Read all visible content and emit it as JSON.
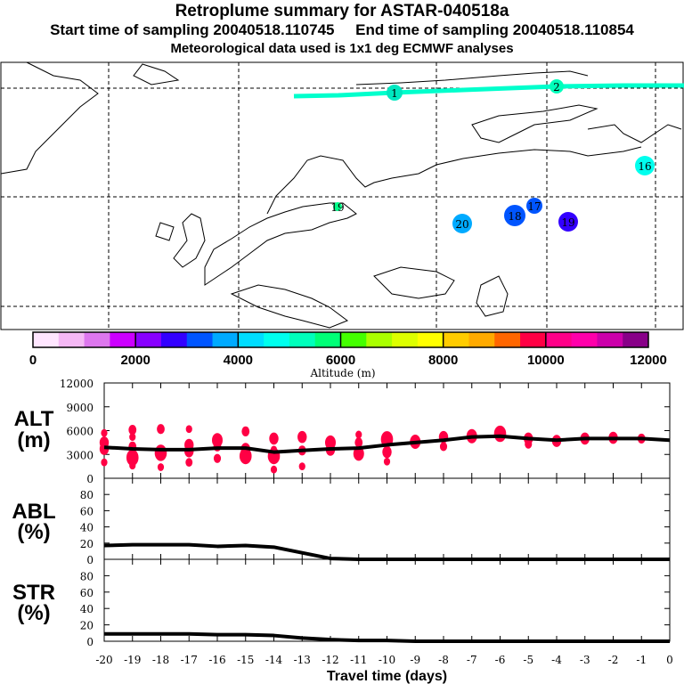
{
  "header": {
    "title": "Retroplume summary for ASTAR-040518a",
    "subtitle": "Start time of sampling 20040518.110745     End time of sampling 20040518.110854",
    "met_info": "Meteorological data used is 1x1 deg ECMWF analyses"
  },
  "map": {
    "plume_labels": [
      {
        "text": "1",
        "color": "#00e8c0"
      },
      {
        "text": "2",
        "color": "#00ffbb"
      },
      {
        "text": "16",
        "color": "#00ffee"
      },
      {
        "text": "17",
        "color": "#0055ff"
      },
      {
        "text": "18",
        "color": "#0055ff"
      },
      {
        "text": "19",
        "color": "#3300ff"
      },
      {
        "text": "20",
        "color": "#00aaff"
      },
      {
        "text": "19",
        "color": "#00ff88"
      }
    ]
  },
  "colorbar": {
    "label": "Altitude (m)",
    "ticks": [
      "0",
      "2000",
      "4000",
      "6000",
      "8000",
      "10000",
      "12000"
    ],
    "colors": [
      "#ffe6ff",
      "#f5b8f5",
      "#dd77ee",
      "#cc00ff",
      "#8800ff",
      "#3300ff",
      "#0055ff",
      "#00aaff",
      "#00ddff",
      "#00ffee",
      "#00ffbb",
      "#00ff77",
      "#44ff00",
      "#aaff00",
      "#ddff00",
      "#ffff00",
      "#ffcc00",
      "#ffaa00",
      "#ff6600",
      "#ff0044",
      "#ff0088",
      "#ff00aa",
      "#cc00aa",
      "#880088"
    ]
  },
  "chart_data": [
    {
      "type": "line",
      "panel": "ALT",
      "ylabel": "ALT\n(m)",
      "ylabel_lines": [
        "ALT",
        "(m)"
      ],
      "ylim": [
        0,
        12000
      ],
      "yticks": [
        "0",
        "3000",
        "6000",
        "9000",
        "12000"
      ],
      "x": [
        -20,
        -19,
        -18,
        -17,
        -16,
        -15,
        -14,
        -13,
        -12,
        -11,
        -10,
        -9,
        -8,
        -7,
        -6,
        -5,
        -4,
        -3,
        -2,
        -1,
        0
      ],
      "values": [
        3900,
        3700,
        3600,
        3600,
        3800,
        3800,
        3300,
        3500,
        3700,
        3800,
        4200,
        4500,
        4800,
        5200,
        5300,
        5000,
        4800,
        5000,
        5000,
        5000,
        4800
      ],
      "scatter_color": "#ff0044",
      "scatter": [
        [
          -20,
          5700,
          1
        ],
        [
          -20,
          4500,
          2
        ],
        [
          -20,
          3700,
          2
        ],
        [
          -20,
          2000,
          1
        ],
        [
          -19,
          6100,
          1.5
        ],
        [
          -19,
          5200,
          1
        ],
        [
          -19,
          4000,
          1.5
        ],
        [
          -19,
          2600,
          3
        ],
        [
          -19,
          1600,
          1
        ],
        [
          -18,
          6200,
          1.5
        ],
        [
          -18,
          3200,
          3
        ],
        [
          -18,
          1400,
          1
        ],
        [
          -17,
          6200,
          1
        ],
        [
          -17,
          4200,
          2
        ],
        [
          -17,
          3400,
          2
        ],
        [
          -17,
          2000,
          1.2
        ],
        [
          -16,
          4800,
          2.5
        ],
        [
          -16,
          4000,
          1.5
        ],
        [
          -16,
          2500,
          1.3
        ],
        [
          -15,
          5900,
          1.5
        ],
        [
          -15,
          3700,
          2
        ],
        [
          -15,
          2800,
          3
        ],
        [
          -14,
          5000,
          2
        ],
        [
          -14,
          2800,
          3
        ],
        [
          -14,
          3600,
          1
        ],
        [
          -14,
          1100,
          1
        ],
        [
          -13,
          5200,
          2
        ],
        [
          -13,
          3500,
          1.5
        ],
        [
          -13,
          1500,
          1
        ],
        [
          -12,
          4500,
          2.5
        ],
        [
          -12,
          3600,
          2
        ],
        [
          -11,
          5500,
          1
        ],
        [
          -11,
          4500,
          1.5
        ],
        [
          -11,
          3100,
          2.5
        ],
        [
          -10,
          4900,
          3
        ],
        [
          -10,
          3300,
          2
        ],
        [
          -10,
          2100,
          1
        ],
        [
          -9,
          4600,
          2.5
        ],
        [
          -8,
          5200,
          2
        ],
        [
          -8,
          4000,
          1.3
        ],
        [
          -7,
          5300,
          2.5
        ],
        [
          -6,
          5600,
          3
        ],
        [
          -5,
          5000,
          2
        ],
        [
          -5,
          4300,
          1.3
        ],
        [
          -4,
          4700,
          2
        ],
        [
          -3,
          5000,
          2
        ],
        [
          -2,
          5100,
          2
        ],
        [
          -1,
          5000,
          1.5
        ]
      ]
    },
    {
      "type": "line",
      "panel": "ABL",
      "ylabel_lines": [
        "ABL",
        "(%)"
      ],
      "ylim": [
        0,
        100
      ],
      "yticks": [
        "0",
        "20",
        "40",
        "60",
        "80"
      ],
      "x": [
        -20,
        -19,
        -18,
        -17,
        -16,
        -15,
        -14,
        -13,
        -12,
        -11,
        -10,
        -9,
        -8,
        -7,
        -6,
        -5,
        -4,
        -3,
        -2,
        -1,
        0
      ],
      "values": [
        17,
        18,
        18,
        18,
        16,
        17,
        15,
        8,
        1,
        0,
        0,
        0,
        0,
        0,
        0,
        0,
        0,
        0,
        0,
        0,
        0
      ]
    },
    {
      "type": "line",
      "panel": "STR",
      "ylabel_lines": [
        "STR",
        "(%)"
      ],
      "ylim": [
        0,
        100
      ],
      "yticks": [
        "0",
        "20",
        "40",
        "60",
        "80"
      ],
      "x": [
        -20,
        -19,
        -18,
        -17,
        -16,
        -15,
        -14,
        -13,
        -12,
        -11,
        -10,
        -9,
        -8,
        -7,
        -6,
        -5,
        -4,
        -3,
        -2,
        -1,
        0
      ],
      "values": [
        9,
        9,
        9,
        9,
        8,
        8,
        7,
        4,
        2,
        1,
        1,
        0,
        0,
        0,
        0,
        0,
        0,
        0,
        0,
        0,
        0
      ],
      "xlabel": "Travel time (days)",
      "xticks": [
        "-20",
        "-19",
        "-18",
        "-17",
        "-16",
        "-15",
        "-14",
        "-13",
        "-12",
        "-11",
        "-10",
        "-9",
        "-8",
        "-7",
        "-6",
        "-5",
        "-4",
        "-3",
        "-2",
        "-1",
        "0"
      ]
    }
  ]
}
